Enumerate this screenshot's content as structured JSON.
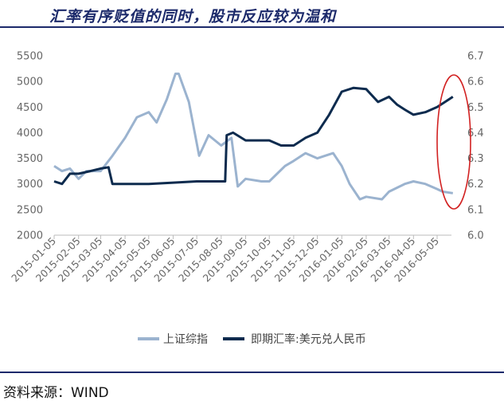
{
  "title": "汇率有序贬值的同时，股市反应较为温和",
  "source": "资料来源：WIND",
  "colors": {
    "title": "#1c2a6b",
    "index": "#9bb3cf",
    "fx": "#0d2b4e",
    "highlight": "#d22222"
  },
  "chart_data": {
    "type": "line",
    "x_ticks": [
      "2015-01-05",
      "2015-02-05",
      "2015-03-05",
      "2015-04-05",
      "2015-05-05",
      "2015-06-05",
      "2015-07-05",
      "2015-08-05",
      "2015-09-05",
      "2015-10-05",
      "2015-11-05",
      "2015-12-05",
      "2016-01-05",
      "2016-02-05",
      "2016-03-05",
      "2016-04-05",
      "2016-05-05"
    ],
    "y_left": {
      "min": 2000,
      "max": 5500,
      "ticks": [
        "5500",
        "5000",
        "4500",
        "4000",
        "3500",
        "3000",
        "2500",
        "2000"
      ]
    },
    "y_right": {
      "min": 6.0,
      "max": 6.7,
      "ticks": [
        "6.7",
        "6.6",
        "6.5",
        "6.4",
        "6.3",
        "6.2",
        "6.1",
        "6.0"
      ]
    },
    "grid": false,
    "legend_position": "bottom",
    "series": [
      {
        "name": "上证综指",
        "axis": "left",
        "points": [
          [
            "2015-01-05",
            3350
          ],
          [
            "2015-01-15",
            3250
          ],
          [
            "2015-01-25",
            3300
          ],
          [
            "2015-02-05",
            3100
          ],
          [
            "2015-02-15",
            3250
          ],
          [
            "2015-03-05",
            3250
          ],
          [
            "2015-03-20",
            3550
          ],
          [
            "2015-04-05",
            3900
          ],
          [
            "2015-04-20",
            4300
          ],
          [
            "2015-05-05",
            4400
          ],
          [
            "2015-05-15",
            4200
          ],
          [
            "2015-05-28",
            4650
          ],
          [
            "2015-06-08",
            5150
          ],
          [
            "2015-06-12",
            5150
          ],
          [
            "2015-06-25",
            4600
          ],
          [
            "2015-07-08",
            3550
          ],
          [
            "2015-07-20",
            3950
          ],
          [
            "2015-08-05",
            3750
          ],
          [
            "2015-08-18",
            3900
          ],
          [
            "2015-08-26",
            2950
          ],
          [
            "2015-09-05",
            3100
          ],
          [
            "2015-09-25",
            3050
          ],
          [
            "2015-10-05",
            3050
          ],
          [
            "2015-10-25",
            3350
          ],
          [
            "2015-11-05",
            3450
          ],
          [
            "2015-11-20",
            3600
          ],
          [
            "2015-12-05",
            3500
          ],
          [
            "2015-12-25",
            3600
          ],
          [
            "2016-01-05",
            3350
          ],
          [
            "2016-01-15",
            3000
          ],
          [
            "2016-01-28",
            2700
          ],
          [
            "2016-02-05",
            2750
          ],
          [
            "2016-02-25",
            2700
          ],
          [
            "2016-03-05",
            2850
          ],
          [
            "2016-03-25",
            3000
          ],
          [
            "2016-04-05",
            3050
          ],
          [
            "2016-04-20",
            3000
          ],
          [
            "2016-05-05",
            2900
          ],
          [
            "2016-05-12",
            2850
          ],
          [
            "2016-05-25",
            2820
          ]
        ]
      },
      {
        "name": "即期汇率:美元兑人民币",
        "axis": "right",
        "points": [
          [
            "2015-01-05",
            6.21
          ],
          [
            "2015-01-15",
            6.2
          ],
          [
            "2015-01-25",
            6.24
          ],
          [
            "2015-02-05",
            6.24
          ],
          [
            "2015-02-20",
            6.25
          ],
          [
            "2015-03-05",
            6.26
          ],
          [
            "2015-03-15",
            6.265
          ],
          [
            "2015-03-20",
            6.2
          ],
          [
            "2015-04-05",
            6.2
          ],
          [
            "2015-05-05",
            6.2
          ],
          [
            "2015-06-05",
            6.205
          ],
          [
            "2015-07-05",
            6.21
          ],
          [
            "2015-08-05",
            6.21
          ],
          [
            "2015-08-10",
            6.21
          ],
          [
            "2015-08-12",
            6.39
          ],
          [
            "2015-08-20",
            6.4
          ],
          [
            "2015-09-05",
            6.37
          ],
          [
            "2015-09-20",
            6.37
          ],
          [
            "2015-10-05",
            6.37
          ],
          [
            "2015-10-20",
            6.35
          ],
          [
            "2015-11-05",
            6.35
          ],
          [
            "2015-11-20",
            6.38
          ],
          [
            "2015-12-05",
            6.4
          ],
          [
            "2015-12-20",
            6.47
          ],
          [
            "2016-01-05",
            6.56
          ],
          [
            "2016-01-20",
            6.575
          ],
          [
            "2016-02-05",
            6.57
          ],
          [
            "2016-02-20",
            6.52
          ],
          [
            "2016-03-05",
            6.54
          ],
          [
            "2016-03-15",
            6.51
          ],
          [
            "2016-03-25",
            6.49
          ],
          [
            "2016-04-05",
            6.47
          ],
          [
            "2016-04-20",
            6.48
          ],
          [
            "2016-05-05",
            6.5
          ],
          [
            "2016-05-15",
            6.52
          ],
          [
            "2016-05-25",
            6.54
          ]
        ]
      }
    ]
  }
}
